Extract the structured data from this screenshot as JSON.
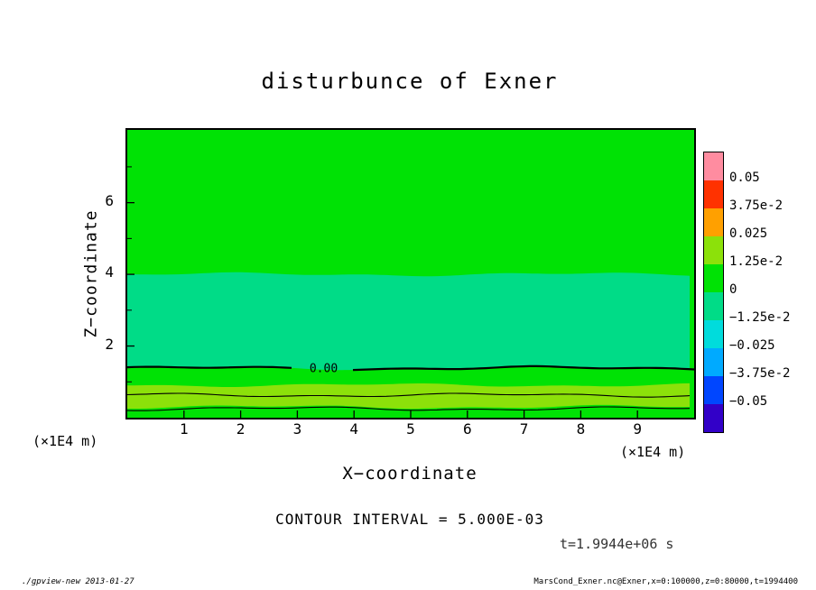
{
  "title": "disturbunce of Exner",
  "axes": {
    "x_label": "X−coordinate",
    "y_label": "Z−coordinate",
    "unit": "(×1E4 m)",
    "x_ticks": [
      "1",
      "2",
      "3",
      "4",
      "5",
      "6",
      "7",
      "8",
      "9"
    ],
    "y_ticks": [
      "2",
      "4",
      "6"
    ]
  },
  "colorbar": {
    "labels": [
      "0.05",
      "3.75e-2",
      "0.025",
      "1.25e-2",
      "0",
      "−1.25e-2",
      "−0.025",
      "−3.75e-2",
      "−0.05"
    ],
    "colors": [
      "#FF8CA0",
      "#FF3200",
      "#FFA000",
      "#8CE10A",
      "#00E205",
      "#00DC87",
      "#00DCDC",
      "#00AAFF",
      "#0046FF",
      "#3200C8"
    ]
  },
  "annotations": {
    "contour_interval": "CONTOUR INTERVAL = 5.000E-03",
    "time": "t=1.9944e+06 s",
    "footer_left": "./gpview-new  2013-01-27",
    "footer_right": "MarsCond_Exner.nc@Exner,x=0:100000,z=0:80000,t=1994400"
  },
  "chart_data": {
    "type": "heatmap",
    "title": "disturbunce of Exner",
    "xlabel": "X−coordinate",
    "ylabel": "Z−coordinate",
    "x_axis": {
      "min": 0,
      "max": 10,
      "unit": "(×1E4 m)",
      "ticks": [
        1,
        2,
        3,
        4,
        5,
        6,
        7,
        8,
        9
      ]
    },
    "z_axis": {
      "min": 0,
      "max": 8.03,
      "unit": "(×1E4 m)",
      "ticks": [
        2,
        4,
        6
      ],
      "minor_ticks": [
        1,
        3,
        5,
        7
      ]
    },
    "contour_interval": "5.000E-03",
    "time": "t=1.9944e+06 s",
    "bands": [
      {
        "full": true,
        "value_range": "0 to 1.25e-2",
        "color": "#00E205"
      },
      {
        "z_from": 1.38,
        "z_to": 4.0,
        "value_range": "-1.25e-2 to 0",
        "color": "#00DC87"
      },
      {
        "z_from": 0.3,
        "z_to": 0.91,
        "value_range": "1.25e-2 to 2.5e-2",
        "color": "#8CE10A"
      }
    ],
    "contours": [
      {
        "z": 1.38,
        "value": "0.00",
        "width": 2.2,
        "label": "0.00",
        "label_gap": [
          185,
          250
        ]
      },
      {
        "z": 0.63,
        "value": "5.0e-3",
        "width": 1.1
      },
      {
        "z": 0.25,
        "value": "1.0e-2",
        "width": 1.1
      }
    ]
  }
}
